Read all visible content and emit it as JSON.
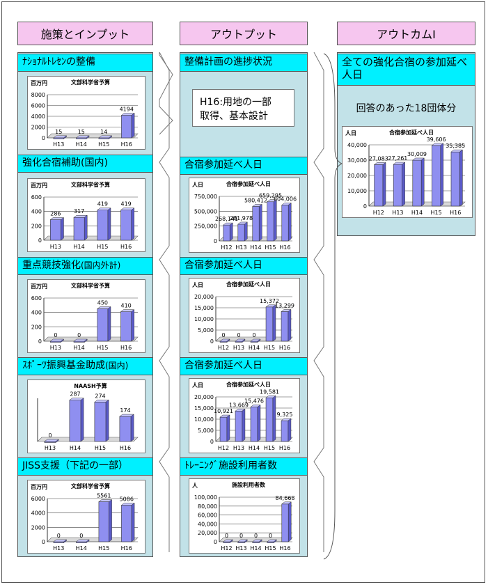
{
  "columns": {
    "inputs": "施策とインプット",
    "outputs": "アウトプット",
    "outcomes": "アウトカムⅠ"
  },
  "inputs": [
    {
      "title": "ﾅｼｮﾅﾙﾄﾚｾﾝの整備",
      "title_suffix": ""
    },
    {
      "title": "強化合宿補助(国内)",
      "title_suffix": ""
    },
    {
      "title": "重点競技強化",
      "title_suffix": "(国内外計)"
    },
    {
      "title": "ｽﾎﾟｰﾂ振興基金助成",
      "title_suffix": "(国内)"
    },
    {
      "title": "JISS支援（下記の一部）",
      "title_suffix": ""
    }
  ],
  "outputs": [
    {
      "title": "整備計画の進捗状況"
    },
    {
      "title": "合宿参加延べ人日"
    },
    {
      "title": "合宿参加延べ人日"
    },
    {
      "title": "合宿参加延べ人日"
    },
    {
      "title": "ﾄﾚｰﾆﾝｸﾞ施設利用者数"
    }
  ],
  "progress_text": [
    "H16:用地の一部",
    "取得、基本設計"
  ],
  "outcome": {
    "title": "全ての強化合宿の参加延べ人日",
    "subtitle": "回答のあった18団体分"
  },
  "chart_data": [
    {
      "id": "in1",
      "type": "bar",
      "title": "文部科学省予算",
      "unit": "百万円",
      "categories": [
        "H13",
        "H14",
        "H15",
        "H16"
      ],
      "values": [
        15,
        15,
        14,
        4194
      ],
      "labels": [
        "15",
        "15",
        "14",
        "4194"
      ],
      "ylim": [
        0,
        8000
      ],
      "yticks": [
        "0",
        "2000",
        "4000",
        "6000",
        "8000"
      ],
      "color": "#8f8ff0"
    },
    {
      "id": "in2",
      "type": "bar",
      "title": "文部科学省予算",
      "unit": "百万円",
      "categories": [
        "H13",
        "H14",
        "H15",
        "H16"
      ],
      "values": [
        286,
        317,
        419,
        419
      ],
      "labels": [
        "286",
        "317",
        "419",
        "419"
      ],
      "ylim": [
        0,
        600
      ],
      "yticks": [
        "0",
        "200",
        "400",
        "600"
      ],
      "color": "#8f8ff0"
    },
    {
      "id": "in3",
      "type": "bar",
      "title": "文部科学省予算",
      "unit": "百万円",
      "categories": [
        "H13",
        "H14",
        "H15",
        "H16"
      ],
      "values": [
        0,
        0,
        450,
        410
      ],
      "labels": [
        "0",
        "0",
        "450",
        "410"
      ],
      "ylim": [
        0,
        600
      ],
      "yticks": [
        "0",
        "200",
        "400",
        "600"
      ],
      "color": "#8f8ff0"
    },
    {
      "id": "in4",
      "type": "bar",
      "title": "NAASH予算",
      "unit": "",
      "categories": [
        "H13",
        "H14",
        "H15",
        "H16"
      ],
      "values": [
        0,
        287,
        274,
        174
      ],
      "labels": [
        "0",
        "287",
        "274",
        "174"
      ],
      "ylim": [
        0,
        300
      ],
      "yticks": [],
      "color": "#8f8ff0"
    },
    {
      "id": "in5",
      "type": "bar",
      "title": "文部科学省予算",
      "unit": "百万円",
      "categories": [
        "H13",
        "H14",
        "H15",
        "H16"
      ],
      "values": [
        0,
        0,
        5561,
        5086
      ],
      "labels": [
        "0",
        "0",
        "5561",
        "5086"
      ],
      "ylim": [
        0,
        6000
      ],
      "yticks": [
        "0",
        "2000",
        "4000",
        "6000"
      ],
      "color": "#8f8ff0"
    },
    {
      "id": "out2",
      "type": "bar",
      "title": "合宿参加延べ人日",
      "unit": "人日",
      "categories": [
        "H12",
        "H13",
        "H14",
        "H15",
        "H16"
      ],
      "values": [
        268141,
        281978,
        580412,
        659295,
        604006
      ],
      "labels": [
        "268,141",
        "281,978",
        "580,412",
        "659,295",
        "604,006"
      ],
      "ylim": [
        0,
        750000
      ],
      "yticks": [
        "0",
        "250,000",
        "500,000",
        "750,000"
      ],
      "color": "#8f8ff0"
    },
    {
      "id": "out3",
      "type": "bar",
      "title": "合宿参加延べ人日",
      "unit": "人日",
      "categories": [
        "H12",
        "H13",
        "H14",
        "H15",
        "H16"
      ],
      "values": [
        0,
        0,
        0,
        15372,
        13299
      ],
      "labels": [
        "0",
        "0",
        "0",
        "15,372",
        "13,299"
      ],
      "ylim": [
        0,
        20000
      ],
      "yticks": [
        "0",
        "5,000",
        "10,000",
        "15,000",
        "20,000"
      ],
      "color": "#8f8ff0"
    },
    {
      "id": "out4",
      "type": "bar",
      "title": "合宿参加延べ人日",
      "unit": "人日",
      "categories": [
        "H12",
        "H13",
        "H14",
        "H15",
        "H16"
      ],
      "values": [
        10921,
        13669,
        15476,
        19581,
        9325
      ],
      "labels": [
        "10,921",
        "13,669",
        "15,476",
        "19,581",
        "9,325"
      ],
      "ylim": [
        0,
        20000
      ],
      "yticks": [
        "0",
        "5,000",
        "10,000",
        "15,000",
        "20,000"
      ],
      "color": "#8f8ff0"
    },
    {
      "id": "out5",
      "type": "bar",
      "title": "施設利用者数",
      "unit": "人",
      "categories": [
        "H12",
        "H13",
        "H14",
        "H15",
        "H16"
      ],
      "values": [
        0,
        0,
        0,
        0,
        84668
      ],
      "labels": [
        "0",
        "0",
        "0",
        "0",
        "84,668"
      ],
      "ylim": [
        0,
        100000
      ],
      "yticks": [
        "0",
        "20,000",
        "40,000",
        "60,000",
        "80,000",
        "100,000"
      ],
      "color": "#8f8ff0"
    },
    {
      "id": "oc1",
      "type": "bar",
      "title": "合宿参加延べ人日",
      "unit": "人日",
      "categories": [
        "H12",
        "H13",
        "H14",
        "H15",
        "H16"
      ],
      "values": [
        27083,
        27261,
        30009,
        39606,
        35385
      ],
      "labels": [
        "27,083",
        "27,261",
        "30,009",
        "39,606",
        "35,385"
      ],
      "ylim": [
        0,
        40000
      ],
      "yticks": [
        "0",
        "10,000",
        "20,000",
        "30,000",
        "40,000"
      ],
      "color": "#8f8ff0"
    }
  ]
}
